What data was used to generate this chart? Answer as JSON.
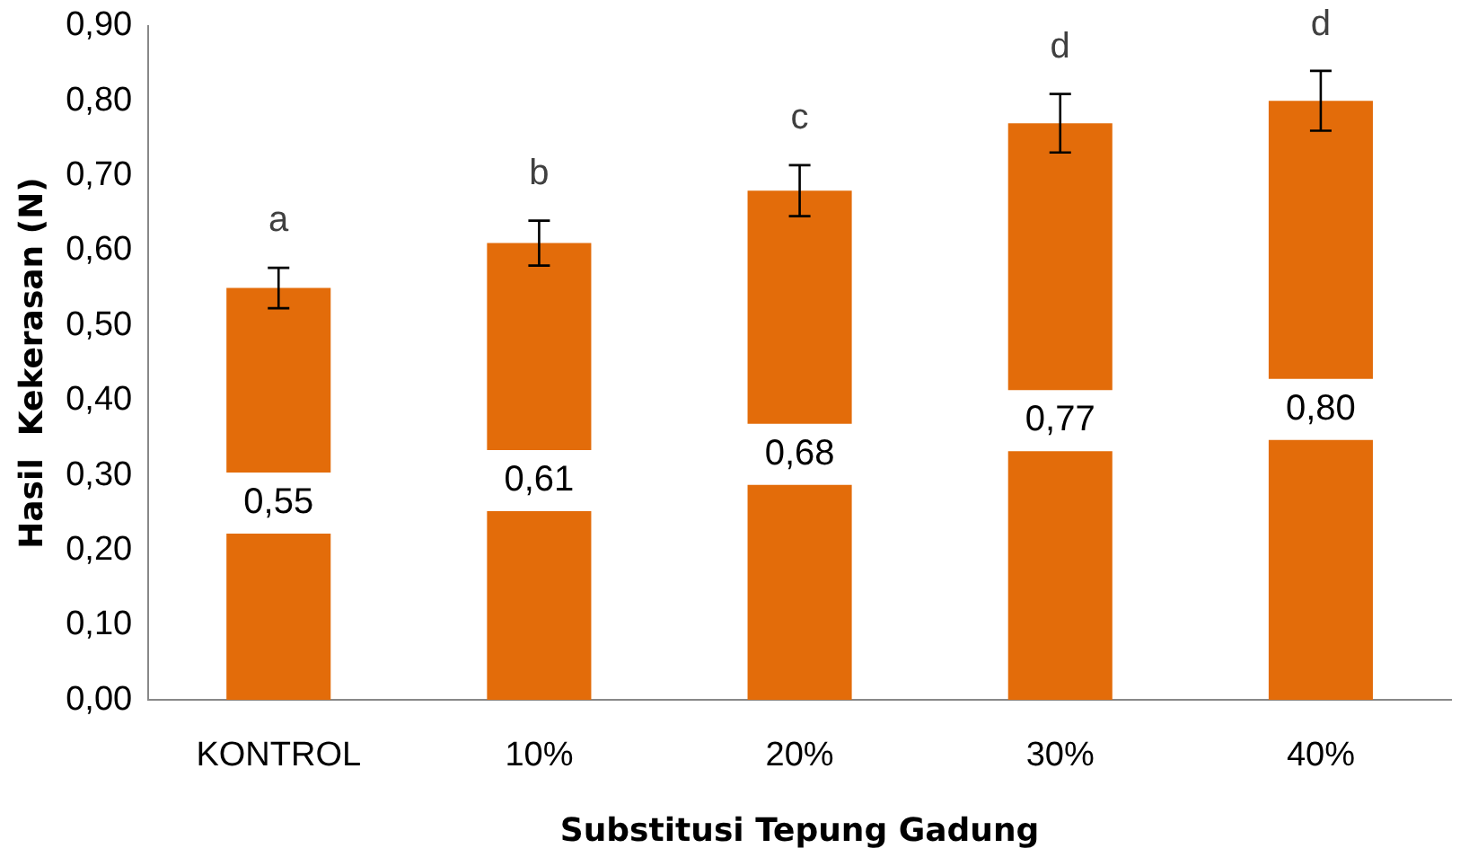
{
  "chart_data": {
    "type": "bar",
    "xlabel": "Substitusi Tepung Gadung",
    "ylabel": "Hasil  Kekerasan (N)",
    "categories": [
      "KONTROL",
      "10%",
      "20%",
      "30%",
      "40%"
    ],
    "values": [
      0.55,
      0.61,
      0.68,
      0.77,
      0.8
    ],
    "color": "#e36c0a",
    "errors": [
      0.027,
      0.03,
      0.034,
      0.039,
      0.04
    ],
    "value_labels": [
      "0,55",
      "0,61",
      "0,68",
      "0,77",
      "0,80"
    ],
    "ylim": [
      0,
      0.9
    ],
    "yticks": [
      {
        "value": 0,
        "label": "0,00"
      },
      {
        "value": 0.1,
        "label": "0,10"
      },
      {
        "value": 0.2,
        "label": "0,20"
      },
      {
        "value": 0.3,
        "label": "0,30"
      },
      {
        "value": 0.4,
        "label": "0,40"
      },
      {
        "value": 0.5,
        "label": "0,50"
      },
      {
        "value": 0.6,
        "label": "0,60"
      },
      {
        "value": 0.7,
        "label": "0,70"
      },
      {
        "value": 0.8,
        "label": "0,80"
      },
      {
        "value": 0.9,
        "label": "0,90"
      }
    ],
    "annotations": [
      "a",
      "b",
      "c",
      "d",
      "d"
    ],
    "grid": false,
    "legend": false
  }
}
